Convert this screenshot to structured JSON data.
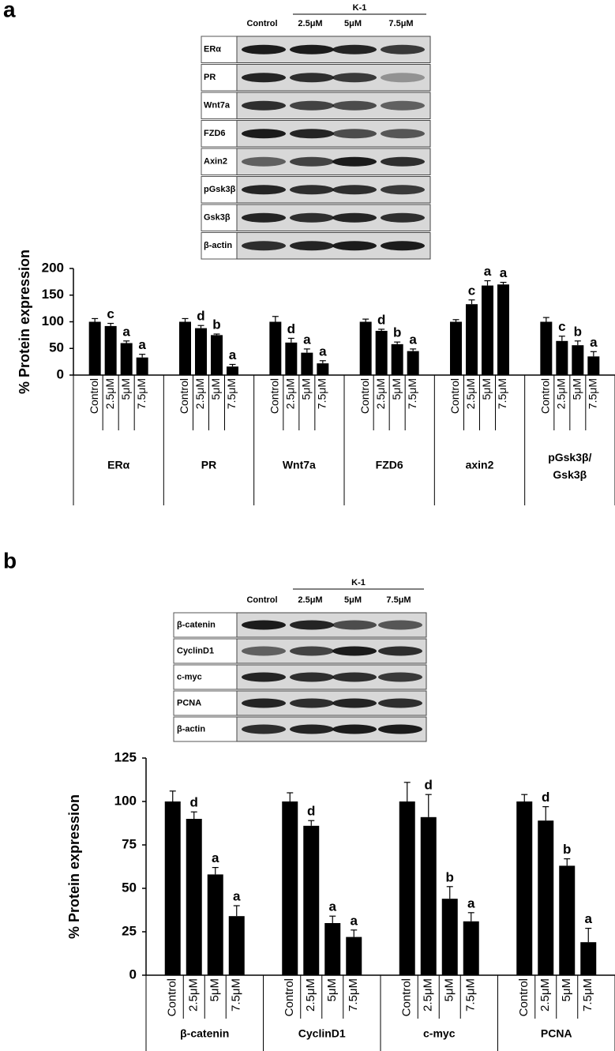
{
  "blots": [
    {
      "panel": "a",
      "group": "K-1",
      "columns": [
        "Control",
        "2.5μM",
        "5μM",
        "7.5μM"
      ],
      "rows": [
        "ERα",
        "PR",
        "Wnt7a",
        "FZD6",
        "Axin2",
        "pGsk3β",
        "Gsk3β",
        "β-actin"
      ]
    },
    {
      "panel": "b",
      "group": "K-1",
      "columns": [
        "Control",
        "2.5μM",
        "5μM",
        "7.5μM"
      ],
      "rows": [
        "β-catenin",
        "CyclinD1",
        "c-myc",
        "PCNA",
        "β-actin"
      ]
    }
  ],
  "chart_data": [
    {
      "type": "bar",
      "ylabel": "% Protein expression",
      "categories": [
        "ERα",
        "PR",
        "Wnt7a",
        "FZD6",
        "axin2",
        "pGsk3β/ Gsk3β"
      ],
      "series": [
        {
          "name": "Control",
          "color": "#000000",
          "values": [
            100,
            100,
            100,
            100,
            100,
            100
          ],
          "errors": [
            6,
            6,
            10,
            5,
            4,
            8
          ],
          "letters": [
            null,
            null,
            null,
            null,
            null,
            null
          ]
        },
        {
          "name": "2.5μM",
          "color": "#000000",
          "values": [
            92,
            88,
            61,
            83,
            133,
            64
          ],
          "errors": [
            5,
            5,
            8,
            3,
            8,
            9
          ],
          "letters": [
            "c",
            "d",
            "d",
            "d",
            "c",
            "c"
          ]
        },
        {
          "name": "5μM",
          "color": "#000000",
          "values": [
            60,
            75,
            42,
            58,
            168,
            56
          ],
          "errors": [
            4,
            2,
            7,
            4,
            9,
            8
          ],
          "letters": [
            "a",
            "b",
            "a",
            "b",
            "a",
            "b"
          ]
        },
        {
          "name": "7.5μM",
          "color": "#000000",
          "values": [
            33,
            16,
            22,
            45,
            170,
            35
          ],
          "errors": [
            6,
            4,
            5,
            4,
            4,
            9
          ],
          "letters": [
            "a",
            "a",
            "a",
            "a",
            "a",
            "a"
          ]
        }
      ],
      "ylim": [
        0,
        200
      ],
      "yticks": [
        0,
        50,
        100,
        150,
        200
      ]
    },
    {
      "type": "bar",
      "ylabel": "% Protein expression",
      "categories": [
        "β-catenin",
        "CyclinD1",
        "c-myc",
        "PCNA"
      ],
      "series": [
        {
          "name": "Control",
          "color": "#000000",
          "values": [
            100,
            100,
            100,
            100
          ],
          "errors": [
            6,
            5,
            11,
            4
          ],
          "letters": [
            null,
            null,
            null,
            null
          ]
        },
        {
          "name": "2.5μM",
          "color": "#000000",
          "values": [
            90,
            86,
            91,
            89
          ],
          "errors": [
            4,
            3,
            13,
            8
          ],
          "letters": [
            "d",
            "d",
            "d",
            "d"
          ]
        },
        {
          "name": "5μM",
          "color": "#000000",
          "values": [
            58,
            30,
            44,
            63
          ],
          "errors": [
            4,
            4,
            7,
            4
          ],
          "letters": [
            "a",
            "a",
            "b",
            "b"
          ]
        },
        {
          "name": "7.5μM",
          "color": "#000000",
          "values": [
            34,
            22,
            31,
            19
          ],
          "errors": [
            6,
            4,
            5,
            8
          ],
          "letters": [
            "a",
            "a",
            "a",
            "a"
          ]
        }
      ],
      "ylim": [
        0,
        125
      ],
      "yticks": [
        0,
        25,
        50,
        75,
        100,
        125
      ]
    }
  ]
}
